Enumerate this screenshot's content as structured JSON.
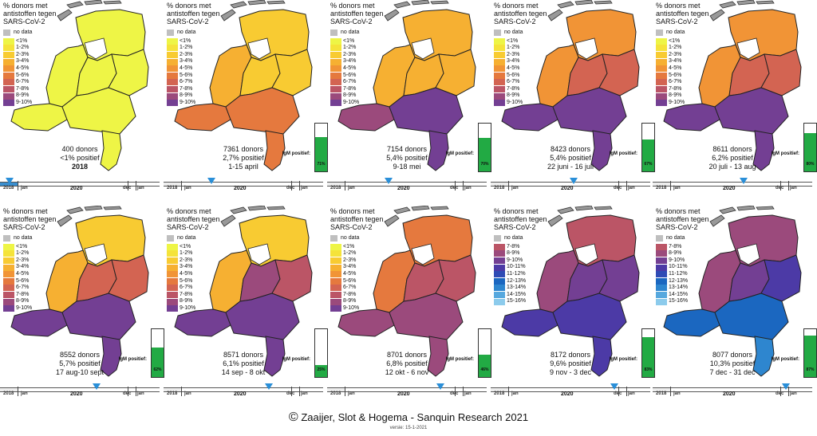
{
  "title_line1": "% donors met",
  "title_line2": "antistoffen tegen",
  "title_line3": "SARS-CoV-2",
  "legend_nodata": "no data",
  "legend_a": [
    "<1%",
    "1-2%",
    "2-3%",
    "3-4%",
    "4-5%",
    "5-6%",
    "6-7%",
    "7-8%",
    "8-9%",
    "9-10%"
  ],
  "legend_a_colors": [
    "#eef546",
    "#f5e33a",
    "#f8cb32",
    "#f6b032",
    "#f19436",
    "#e5793e",
    "#d36452",
    "#bb5566",
    "#9b4a7c",
    "#733f93"
  ],
  "legend_b": [
    "7-8%",
    "8-9%",
    "9-10%",
    "10-11%",
    "11-12%",
    "12-13%",
    "13-14%",
    "14-15%",
    "15-16%"
  ],
  "legend_b_colors": [
    "#bb5566",
    "#9b4a7c",
    "#733f93",
    "#4c3aa6",
    "#2f4bb5",
    "#1b67c0",
    "#2e86cf",
    "#56a8de",
    "#8ccbec"
  ],
  "igm_label": "IgM positief:",
  "timeline": {
    "y2018": "2018",
    "jan": "jan",
    "y2020": "2020",
    "dec": "dec",
    "jan2": "jan"
  },
  "panels": [
    {
      "donors": "400  donors",
      "positive": "<1% positief",
      "period": "2018",
      "igm": null
    },
    {
      "donors": "7361 donors",
      "positive": "2,7% positief",
      "period": "1-15 april",
      "igm": "71%"
    },
    {
      "donors": "7154 donors",
      "positive": "5,4% positief",
      "period": "9-18 mei",
      "igm": "70%"
    },
    {
      "donors": "8423 donors",
      "positive": "5,4% positief",
      "period": "22 juni - 16 juli",
      "igm": "67%"
    },
    {
      "donors": "8611 donors",
      "positive": "6,2% positief",
      "period": "20 juli - 13 aug",
      "igm": "80%"
    },
    {
      "donors": "8552 donors",
      "positive": "5,7% positief",
      "period": "17 aug-10 sept",
      "igm": "62%"
    },
    {
      "donors": "8571 donors",
      "positive": "6,1% positief",
      "period": "14 sep - 8 okt",
      "igm": "25%"
    },
    {
      "donors": "8701 donors",
      "positive": "6,8% positief",
      "period": "12 okt - 6 nov",
      "igm": "46%"
    },
    {
      "donors": "8172 donors",
      "positive": "9,6% positief",
      "period": "9 nov - 3 dec",
      "igm": "83%"
    },
    {
      "donors": "8077 donors",
      "positive": "10,3% positief",
      "period": "7 dec - 31 dec",
      "igm": "87%"
    }
  ],
  "footer_copyright": "©",
  "footer_text": " Zaaijer, Slot & Hogema - Sanquin Research 2021",
  "version": "versie: 15-1-2021"
}
